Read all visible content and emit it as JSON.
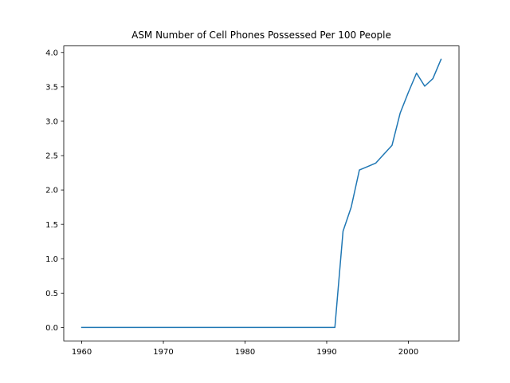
{
  "chart_data": {
    "type": "line",
    "title": "ASM Number of Cell Phones Possessed Per 100 People",
    "xlabel": "",
    "ylabel": "",
    "xlim": [
      1957.8,
      2006.2
    ],
    "ylim": [
      -0.195,
      4.095
    ],
    "x_ticks": [
      1960,
      1970,
      1980,
      1990,
      2000
    ],
    "y_ticks": [
      "0.0",
      "0.5",
      "1.0",
      "1.5",
      "2.0",
      "2.5",
      "3.0",
      "3.5",
      "4.0"
    ],
    "grid": false,
    "legend": "none",
    "series": [
      {
        "color": "#1f77b4",
        "x": [
          1960,
          1961,
          1962,
          1963,
          1964,
          1965,
          1966,
          1967,
          1968,
          1969,
          1970,
          1971,
          1972,
          1973,
          1974,
          1975,
          1976,
          1977,
          1978,
          1979,
          1980,
          1981,
          1982,
          1983,
          1984,
          1985,
          1986,
          1987,
          1988,
          1989,
          1990,
          1991,
          1992,
          1993,
          1994,
          1995,
          1996,
          1997,
          1998,
          1999,
          2000,
          2001,
          2002,
          2003,
          2004
        ],
        "y": [
          0,
          0,
          0,
          0,
          0,
          0,
          0,
          0,
          0,
          0,
          0,
          0,
          0,
          0,
          0,
          0,
          0,
          0,
          0,
          0,
          0,
          0,
          0,
          0,
          0,
          0,
          0,
          0,
          0,
          0,
          0,
          0,
          1.4,
          1.75,
          2.29,
          2.34,
          2.39,
          2.52,
          2.65,
          3.12,
          3.42,
          3.7,
          3.51,
          3.62,
          3.9
        ]
      }
    ]
  }
}
